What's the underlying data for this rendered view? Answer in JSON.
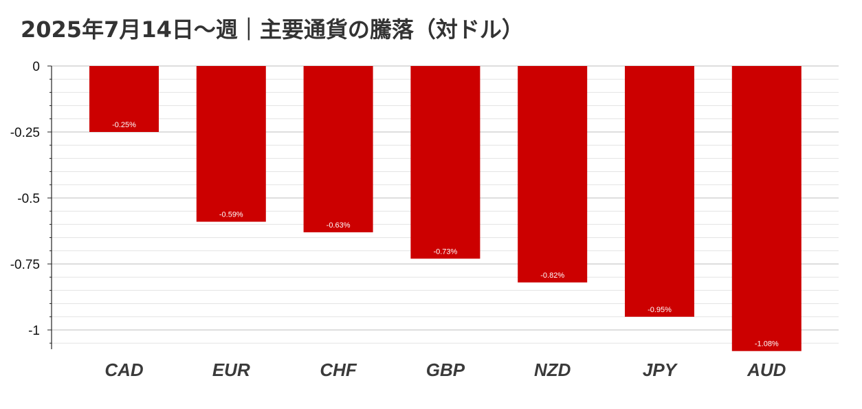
{
  "chart_data": {
    "type": "bar",
    "title": "2025年7月14日～週｜主要通貨の騰落（対ドル）",
    "xlabel": "",
    "ylabel": "",
    "categories": [
      "CAD",
      "EUR",
      "CHF",
      "GBP",
      "NZD",
      "JPY",
      "AUD"
    ],
    "values": [
      -0.25,
      -0.59,
      -0.63,
      -0.73,
      -0.82,
      -0.95,
      -1.08
    ],
    "data_labels": [
      "-0.25%",
      "-0.59%",
      "-0.63%",
      "-0.73%",
      "-0.82%",
      "-0.95%",
      "-1.08%"
    ],
    "ylim": [
      -1.08,
      0
    ],
    "y_ticks": [
      0,
      -0.25,
      -0.5,
      -0.75,
      -1
    ],
    "y_tick_labels": [
      "0",
      "-0.25",
      "-0.5",
      "-0.75",
      "-1"
    ],
    "grid": true,
    "legend": "none",
    "bar_color": "#cc0000"
  }
}
